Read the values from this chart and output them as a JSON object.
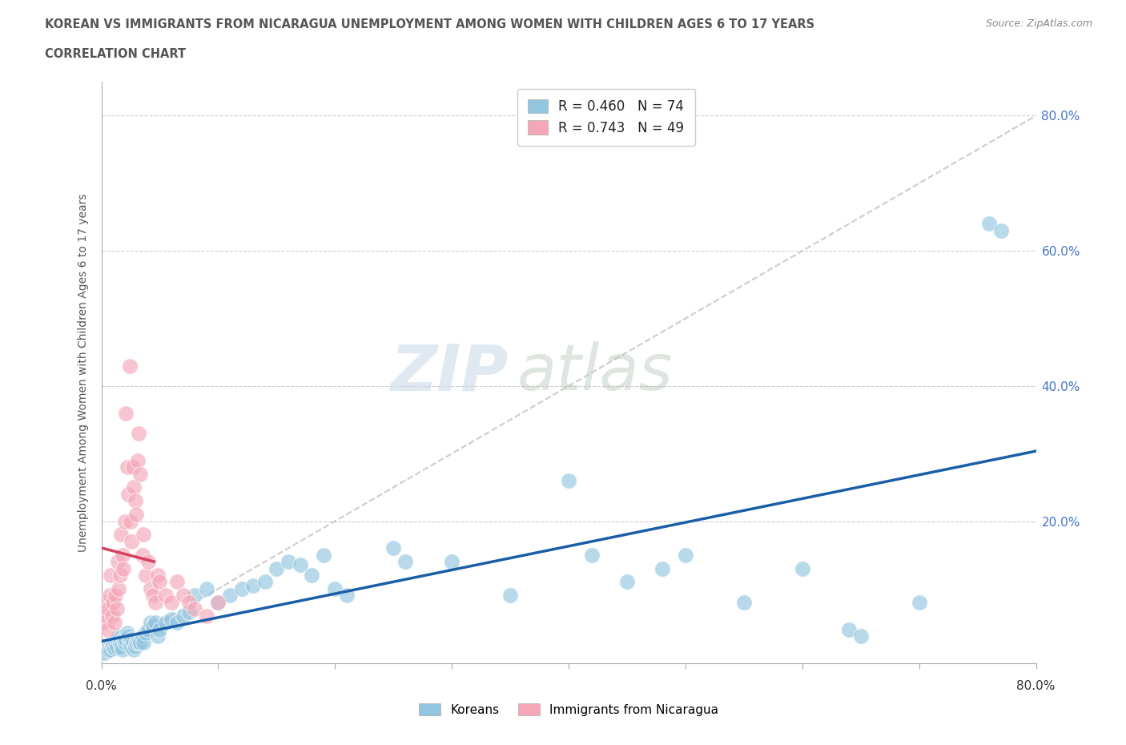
{
  "title_line1": "KOREAN VS IMMIGRANTS FROM NICARAGUA UNEMPLOYMENT AMONG WOMEN WITH CHILDREN AGES 6 TO 17 YEARS",
  "title_line2": "CORRELATION CHART",
  "source_text": "Source: ZipAtlas.com",
  "ylabel": "Unemployment Among Women with Children Ages 6 to 17 years",
  "legend_label1": "Koreans",
  "legend_label2": "Immigrants from Nicaragua",
  "R1": 0.46,
  "N1": 74,
  "R2": 0.743,
  "N2": 49,
  "blue_color": "#92C5DE",
  "pink_color": "#F4A7B9",
  "blue_line_color": "#1A5EA8",
  "pink_line_color": "#D44060",
  "blue_scatter": [
    [
      0.2,
      0.5
    ],
    [
      0.3,
      0.5
    ],
    [
      0.4,
      1.5
    ],
    [
      0.5,
      0.8
    ],
    [
      0.6,
      1.0
    ],
    [
      0.7,
      1.5
    ],
    [
      0.8,
      1.0
    ],
    [
      0.9,
      1.5
    ],
    [
      1.0,
      1.8
    ],
    [
      1.1,
      1.2
    ],
    [
      1.2,
      2.0
    ],
    [
      1.3,
      1.5
    ],
    [
      1.4,
      2.5
    ],
    [
      1.5,
      3.0
    ],
    [
      1.6,
      2.0
    ],
    [
      1.7,
      1.5
    ],
    [
      1.8,
      1.0
    ],
    [
      1.9,
      2.5
    ],
    [
      2.0,
      2.0
    ],
    [
      2.1,
      2.5
    ],
    [
      2.2,
      3.5
    ],
    [
      2.3,
      3.0
    ],
    [
      2.4,
      2.0
    ],
    [
      2.5,
      1.5
    ],
    [
      2.6,
      2.5
    ],
    [
      2.7,
      2.0
    ],
    [
      2.8,
      1.0
    ],
    [
      2.9,
      1.5
    ],
    [
      3.0,
      2.0
    ],
    [
      3.1,
      2.5
    ],
    [
      3.2,
      2.0
    ],
    [
      3.3,
      2.0
    ],
    [
      3.5,
      3.0
    ],
    [
      3.6,
      2.0
    ],
    [
      3.8,
      3.5
    ],
    [
      4.0,
      4.0
    ],
    [
      4.2,
      5.0
    ],
    [
      4.4,
      4.5
    ],
    [
      4.6,
      5.0
    ],
    [
      4.8,
      3.0
    ],
    [
      5.0,
      4.0
    ],
    [
      5.5,
      5.0
    ],
    [
      6.0,
      5.5
    ],
    [
      6.5,
      5.0
    ],
    [
      7.0,
      6.0
    ],
    [
      7.5,
      6.5
    ],
    [
      8.0,
      9.0
    ],
    [
      9.0,
      10.0
    ],
    [
      10.0,
      8.0
    ],
    [
      11.0,
      9.0
    ],
    [
      12.0,
      10.0
    ],
    [
      13.0,
      10.5
    ],
    [
      14.0,
      11.0
    ],
    [
      15.0,
      13.0
    ],
    [
      16.0,
      14.0
    ],
    [
      17.0,
      13.5
    ],
    [
      18.0,
      12.0
    ],
    [
      19.0,
      15.0
    ],
    [
      20.0,
      10.0
    ],
    [
      21.0,
      9.0
    ],
    [
      25.0,
      16.0
    ],
    [
      26.0,
      14.0
    ],
    [
      30.0,
      14.0
    ],
    [
      35.0,
      9.0
    ],
    [
      40.0,
      26.0
    ],
    [
      42.0,
      15.0
    ],
    [
      45.0,
      11.0
    ],
    [
      48.0,
      13.0
    ],
    [
      50.0,
      15.0
    ],
    [
      55.0,
      8.0
    ],
    [
      60.0,
      13.0
    ],
    [
      64.0,
      4.0
    ],
    [
      65.0,
      3.0
    ],
    [
      70.0,
      8.0
    ],
    [
      76.0,
      64.0
    ],
    [
      77.0,
      63.0
    ]
  ],
  "pink_scatter": [
    [
      0.2,
      5.0
    ],
    [
      0.3,
      8.0
    ],
    [
      0.4,
      6.0
    ],
    [
      0.5,
      4.0
    ],
    [
      0.6,
      7.0
    ],
    [
      0.7,
      9.0
    ],
    [
      0.8,
      12.0
    ],
    [
      0.9,
      6.0
    ],
    [
      1.0,
      8.0
    ],
    [
      1.1,
      5.0
    ],
    [
      1.2,
      9.0
    ],
    [
      1.3,
      7.0
    ],
    [
      1.4,
      14.0
    ],
    [
      1.5,
      10.0
    ],
    [
      1.6,
      12.0
    ],
    [
      1.7,
      18.0
    ],
    [
      1.8,
      15.0
    ],
    [
      1.9,
      13.0
    ],
    [
      2.0,
      20.0
    ],
    [
      2.1,
      36.0
    ],
    [
      2.2,
      28.0
    ],
    [
      2.3,
      24.0
    ],
    [
      2.4,
      43.0
    ],
    [
      2.5,
      20.0
    ],
    [
      2.6,
      17.0
    ],
    [
      2.7,
      28.0
    ],
    [
      2.8,
      25.0
    ],
    [
      2.9,
      23.0
    ],
    [
      3.0,
      21.0
    ],
    [
      3.1,
      29.0
    ],
    [
      3.2,
      33.0
    ],
    [
      3.3,
      27.0
    ],
    [
      3.5,
      15.0
    ],
    [
      3.6,
      18.0
    ],
    [
      3.8,
      12.0
    ],
    [
      4.0,
      14.0
    ],
    [
      4.2,
      10.0
    ],
    [
      4.4,
      9.0
    ],
    [
      4.6,
      8.0
    ],
    [
      4.8,
      12.0
    ],
    [
      5.0,
      11.0
    ],
    [
      5.5,
      9.0
    ],
    [
      6.0,
      8.0
    ],
    [
      6.5,
      11.0
    ],
    [
      7.0,
      9.0
    ],
    [
      7.5,
      8.0
    ],
    [
      8.0,
      7.0
    ],
    [
      9.0,
      6.0
    ],
    [
      10.0,
      8.0
    ]
  ],
  "xmin": 0.0,
  "xmax": 80.0,
  "ymin": -1.0,
  "ymax": 85.0,
  "ytick_positions": [
    0.0,
    20.0,
    40.0,
    60.0,
    80.0
  ],
  "ytick_labels": [
    "",
    "20.0%",
    "40.0%",
    "60.0%",
    "80.0%"
  ],
  "xtick_label_left": "0.0%",
  "xtick_label_right": "80.0%",
  "watermark_zip": "ZIP",
  "watermark_atlas": "atlas",
  "background_color": "#ffffff",
  "grid_color": "#cccccc"
}
